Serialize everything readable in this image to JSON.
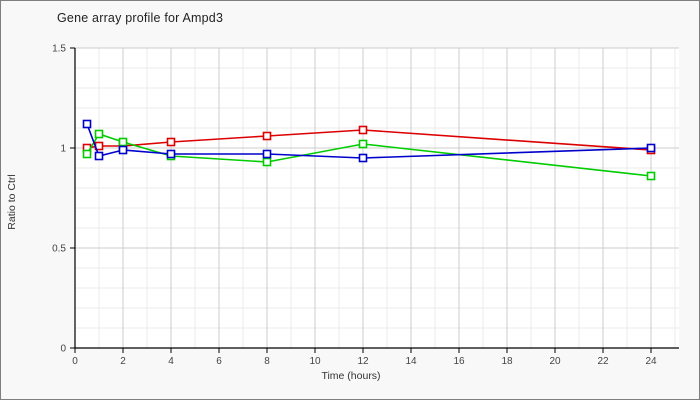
{
  "chart_data": {
    "type": "line",
    "title": "Gene array profile for Ampd3",
    "xlabel": "Time (hours)",
    "ylabel": "Ratio to Ctrl",
    "x": [
      0.5,
      1,
      2,
      4,
      8,
      12,
      24
    ],
    "series": [
      {
        "name": "red",
        "color": "#dd0000",
        "values": [
          1.0,
          1.01,
          1.01,
          1.03,
          1.06,
          1.09,
          0.99
        ]
      },
      {
        "name": "green",
        "color": "#00cc00",
        "values": [
          0.97,
          1.07,
          1.03,
          0.96,
          0.93,
          1.02,
          0.86
        ]
      },
      {
        "name": "blue",
        "color": "#0000cc",
        "values": [
          1.12,
          0.96,
          0.99,
          0.97,
          0.97,
          0.95,
          1.0
        ]
      }
    ],
    "xlim": [
      0,
      24
    ],
    "ylim": [
      0,
      1.5
    ],
    "x_major_ticks": [
      0,
      2,
      4,
      6,
      8,
      10,
      12,
      14,
      16,
      18,
      20,
      22,
      24
    ],
    "y_major_ticks": [
      0,
      0.5,
      1,
      1.5
    ],
    "x_minor_step": 1,
    "y_minor_step": 0.1,
    "marker": "open-square",
    "legend_position": "none",
    "grid": true
  },
  "colors": {
    "page_background": "#f8f8f8",
    "plot_background": "#ffffff",
    "border": "#7e7e7e",
    "axis": "#000000",
    "grid_major": "#cccccc",
    "grid_minor": "#ebebeb",
    "tick_label": "#444444",
    "title_text": "#232323"
  }
}
